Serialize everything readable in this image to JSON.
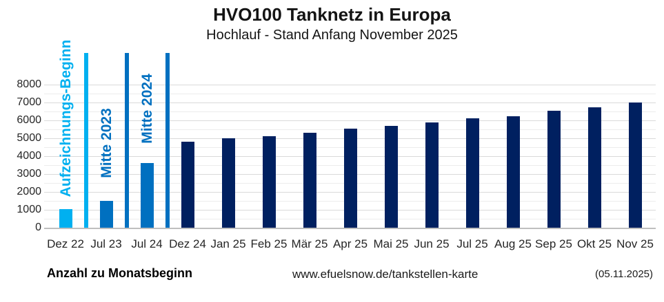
{
  "header": {
    "title": "HVO100 Tanknetz in Europa",
    "subtitle": "Hochlauf - Stand Anfang November 2025"
  },
  "footer": {
    "left": "Anzahl zu Monatsbeginn",
    "center": "www.efuelsnow.de/tankstellen-karte",
    "right": "(05.11.2025)"
  },
  "colors": {
    "light_blue": "#00B0F0",
    "medium_blue": "#0070C0",
    "dark_navy": "#002060",
    "grid_major": "#D9D9D9",
    "grid_minor": "#ECECEC",
    "axis_line": "#BFBFBF",
    "text": "#262626"
  },
  "chart_data": {
    "type": "bar",
    "title": "HVO100 Tanknetz in Europa",
    "subtitle": "Hochlauf - Stand Anfang November 2025",
    "xlabel": "",
    "ylabel": "Anzahl zu Monatsbeginn",
    "categories": [
      "Dez 22",
      "Jul 23",
      "Jul 24",
      "Dez 24",
      "Jan 25",
      "Feb 25",
      "Mär 25",
      "Apr 25",
      "Mai 25",
      "Jun 25",
      "Jul 25",
      "Aug 25",
      "Sep 25",
      "Okt 25",
      "Nov 25"
    ],
    "values": [
      1050,
      1500,
      3600,
      4800,
      5000,
      5100,
      5300,
      5550,
      5700,
      5900,
      6100,
      6250,
      6550,
      6750,
      7000
    ],
    "bar_colors": [
      "#00B0F0",
      "#0070C0",
      "#0070C0",
      "#002060",
      "#002060",
      "#002060",
      "#002060",
      "#002060",
      "#002060",
      "#002060",
      "#002060",
      "#002060",
      "#002060",
      "#002060",
      "#002060"
    ],
    "ylim": [
      0,
      8000
    ],
    "ytick_interval": 1000,
    "minor_grid_interval": 500,
    "yticks": [
      "0",
      "1000",
      "2000",
      "3000",
      "4000",
      "5000",
      "6000",
      "7000",
      "8000"
    ],
    "grid": true,
    "legend": "none",
    "event_lines": [
      {
        "label": "Aufzeichnungs-Beginn",
        "after_category": "Dez 22",
        "after_index": 0,
        "color": "#00B0F0"
      },
      {
        "label": "Mitte 2023",
        "after_category": "Jul 23",
        "after_index": 1,
        "color": "#0070C0"
      },
      {
        "label": "Mitte 2024",
        "after_category": "Jul 24",
        "after_index": 2,
        "color": "#0070C0"
      }
    ]
  }
}
